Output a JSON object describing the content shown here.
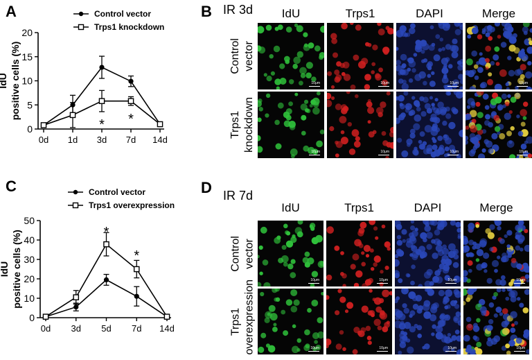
{
  "panels": {
    "A": "A",
    "B": "B",
    "C": "C",
    "D": "D"
  },
  "chart_data": [
    {
      "type": "line",
      "panel": "A",
      "categories": [
        "0d",
        "1d",
        "3d",
        "7d",
        "14d"
      ],
      "ylabel_line1": "IdU",
      "ylabel_line2": "positive cells (%)",
      "ylim": [
        0,
        20
      ],
      "yticks": [
        0,
        5,
        10,
        15,
        20
      ],
      "series": [
        {
          "name": "Control vector",
          "marker": "circle",
          "values": [
            0.8,
            5.0,
            12.8,
            9.9,
            1.0
          ],
          "err": [
            0.3,
            2.0,
            2.3,
            1.1,
            0.2
          ]
        },
        {
          "name": "Trps1 knockdown",
          "marker": "square",
          "values": [
            0.8,
            2.9,
            5.8,
            5.8,
            1.0
          ],
          "err": [
            0.3,
            2.6,
            2.2,
            0.9,
            0.2
          ]
        }
      ],
      "annotations": [
        {
          "category": "3d",
          "text": "*"
        },
        {
          "category": "7d",
          "text": "*"
        }
      ]
    },
    {
      "type": "line",
      "panel": "C",
      "categories": [
        "0d",
        "3d",
        "5d",
        "7d",
        "14d"
      ],
      "ylabel_line1": "IdU",
      "ylabel_line2": "positive cells (%)",
      "ylim": [
        0,
        50
      ],
      "yticks": [
        0,
        10,
        20,
        30,
        40,
        50
      ],
      "series": [
        {
          "name": "Control vector",
          "marker": "circle",
          "values": [
            0.5,
            5.5,
            19.5,
            11.0,
            0.5
          ],
          "err": [
            0.3,
            2.0,
            2.8,
            5.0,
            0.3
          ]
        },
        {
          "name": "Trps1 overexpression",
          "marker": "square",
          "values": [
            0.5,
            10.5,
            37.8,
            25.0,
            0.5
          ],
          "err": [
            0.3,
            3.5,
            6.0,
            4.5,
            0.3
          ]
        }
      ],
      "annotations": [
        {
          "category": "5d",
          "text": "*"
        },
        {
          "category": "7d",
          "text": "*"
        }
      ]
    }
  ],
  "micro_B": {
    "title": "IR 3d",
    "columns": [
      "IdU",
      "Trps1",
      "DAPI",
      "Merge"
    ],
    "rows": [
      [
        "Control",
        "vector"
      ],
      [
        "Trps1",
        "knockdown"
      ]
    ],
    "scale": "10μm"
  },
  "micro_D": {
    "title": "IR 7d",
    "columns": [
      "IdU",
      "Trps1",
      "DAPI",
      "Merge"
    ],
    "rows": [
      [
        "Control",
        "vector"
      ],
      [
        "Trps1",
        "overexpression"
      ]
    ],
    "scale": "10μm"
  },
  "colors": {
    "idu": "#2fbf3a",
    "trps1": "#d02020",
    "dapi": "#2a47b8",
    "line": "#000000"
  }
}
